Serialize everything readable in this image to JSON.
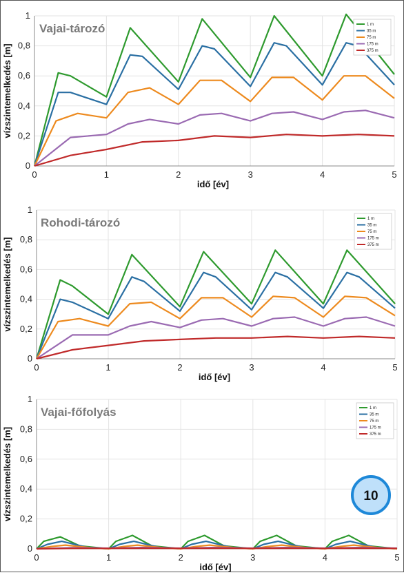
{
  "chart_data": [
    {
      "type": "line",
      "title": "Vajai-tározó",
      "xlabel": "idő [év]",
      "ylabel": "vízszintemelkedés [m]",
      "xlim": [
        0,
        5
      ],
      "ylim": [
        0,
        1
      ],
      "xticks": [
        "0",
        "1",
        "2",
        "3",
        "4",
        "5"
      ],
      "yticks": [
        "0",
        "0,2",
        "0,4",
        "0,6",
        "0,8",
        "1"
      ],
      "grid": true,
      "legend": "top-right",
      "series": [
        {
          "name": "1 m",
          "color": "#2e9a2e",
          "x": [
            0,
            0.33,
            0.5,
            1,
            1.33,
            2,
            2.33,
            3,
            3.33,
            4,
            4.33,
            5
          ],
          "y": [
            0,
            0.62,
            0.6,
            0.46,
            0.92,
            0.56,
            0.98,
            0.59,
            1.0,
            0.6,
            1.01,
            0.61
          ]
        },
        {
          "name": "35 m",
          "color": "#2a6fa3",
          "x": [
            0,
            0.33,
            0.5,
            1,
            1.33,
            1.5,
            2,
            2.33,
            2.5,
            3,
            3.33,
            3.5,
            4,
            4.33,
            4.5,
            5
          ],
          "y": [
            0,
            0.49,
            0.49,
            0.41,
            0.74,
            0.73,
            0.51,
            0.8,
            0.78,
            0.53,
            0.82,
            0.8,
            0.54,
            0.82,
            0.8,
            0.54
          ]
        },
        {
          "name": "75 m",
          "color": "#ed8a1e",
          "x": [
            0,
            0.3,
            0.6,
            1,
            1.3,
            1.6,
            2,
            2.3,
            2.6,
            3,
            3.3,
            3.6,
            4,
            4.3,
            4.6,
            5
          ],
          "y": [
            0,
            0.3,
            0.35,
            0.32,
            0.49,
            0.52,
            0.41,
            0.57,
            0.57,
            0.43,
            0.59,
            0.59,
            0.44,
            0.6,
            0.6,
            0.45
          ]
        },
        {
          "name": "175 m",
          "color": "#9a6ab2",
          "x": [
            0,
            0.5,
            1,
            1.3,
            1.6,
            2,
            2.3,
            2.6,
            3,
            3.3,
            3.6,
            4,
            4.3,
            4.6,
            5
          ],
          "y": [
            0,
            0.19,
            0.21,
            0.28,
            0.31,
            0.28,
            0.34,
            0.35,
            0.3,
            0.35,
            0.36,
            0.31,
            0.36,
            0.37,
            0.32
          ]
        },
        {
          "name": "375 m",
          "color": "#c02a2a",
          "x": [
            0,
            0.5,
            1,
            1.5,
            2,
            2.5,
            3,
            3.5,
            4,
            4.5,
            5
          ],
          "y": [
            0,
            0.07,
            0.11,
            0.16,
            0.17,
            0.2,
            0.19,
            0.21,
            0.2,
            0.21,
            0.2
          ]
        }
      ]
    },
    {
      "type": "line",
      "title": "Rohodi-tározó",
      "xlabel": "idő [év]",
      "ylabel": "vízszintemelkedés [m]",
      "xlim": [
        0,
        5
      ],
      "ylim": [
        0,
        1
      ],
      "xticks": [
        "0",
        "1",
        "2",
        "3",
        "4",
        "5"
      ],
      "yticks": [
        "0",
        "0,2",
        "0,4",
        "0,6",
        "0,8",
        "1"
      ],
      "grid": true,
      "legend": "top-right",
      "series": [
        {
          "name": "1 m",
          "color": "#2e9a2e",
          "x": [
            0,
            0.33,
            0.5,
            1,
            1.33,
            2,
            2.33,
            3,
            3.33,
            4,
            4.33,
            5
          ],
          "y": [
            0,
            0.53,
            0.49,
            0.3,
            0.7,
            0.35,
            0.72,
            0.37,
            0.73,
            0.37,
            0.73,
            0.37
          ]
        },
        {
          "name": "35 m",
          "color": "#2a6fa3",
          "x": [
            0,
            0.33,
            0.5,
            1,
            1.33,
            1.5,
            2,
            2.33,
            2.5,
            3,
            3.33,
            3.5,
            4,
            4.33,
            4.5,
            5
          ],
          "y": [
            0,
            0.4,
            0.38,
            0.27,
            0.55,
            0.52,
            0.32,
            0.58,
            0.55,
            0.33,
            0.58,
            0.55,
            0.34,
            0.58,
            0.55,
            0.34
          ]
        },
        {
          "name": "75 m",
          "color": "#ed8a1e",
          "x": [
            0,
            0.3,
            0.6,
            1,
            1.3,
            1.6,
            2,
            2.3,
            2.6,
            3,
            3.3,
            3.6,
            4,
            4.3,
            4.6,
            5
          ],
          "y": [
            0,
            0.25,
            0.27,
            0.22,
            0.37,
            0.38,
            0.27,
            0.41,
            0.41,
            0.28,
            0.42,
            0.41,
            0.28,
            0.42,
            0.41,
            0.29
          ]
        },
        {
          "name": "175 m",
          "color": "#9a6ab2",
          "x": [
            0,
            0.5,
            1,
            1.3,
            1.6,
            2,
            2.3,
            2.6,
            3,
            3.3,
            3.6,
            4,
            4.3,
            4.6,
            5
          ],
          "y": [
            0,
            0.16,
            0.16,
            0.22,
            0.25,
            0.21,
            0.26,
            0.27,
            0.22,
            0.27,
            0.28,
            0.22,
            0.27,
            0.28,
            0.22
          ]
        },
        {
          "name": "375 m",
          "color": "#c02a2a",
          "x": [
            0,
            0.5,
            1,
            1.5,
            2,
            2.5,
            3,
            3.5,
            4,
            4.5,
            5
          ],
          "y": [
            0,
            0.06,
            0.09,
            0.12,
            0.13,
            0.14,
            0.14,
            0.15,
            0.14,
            0.15,
            0.14
          ]
        }
      ]
    },
    {
      "type": "line",
      "title": "Vajai-főfolyás",
      "xlabel": "idő [év]",
      "ylabel": "vízszintemelkedés [m]",
      "xlim": [
        0,
        5
      ],
      "ylim": [
        0,
        1
      ],
      "xticks": [
        "0",
        "1",
        "2",
        "3",
        "4",
        "5"
      ],
      "yticks": [
        "0",
        "0,2",
        "0,4",
        "0,6",
        "0,8",
        "1"
      ],
      "grid": true,
      "legend": "top-right",
      "series": [
        {
          "name": "1 m",
          "color": "#2e9a2e",
          "x": [
            0,
            0.1,
            0.33,
            0.6,
            1,
            1.1,
            1.33,
            1.6,
            2,
            2.1,
            2.33,
            2.6,
            3,
            3.1,
            3.33,
            3.6,
            4,
            4.1,
            4.33,
            4.6,
            5
          ],
          "y": [
            0,
            0.05,
            0.08,
            0.02,
            0.0,
            0.05,
            0.09,
            0.02,
            0.0,
            0.05,
            0.09,
            0.02,
            0.0,
            0.05,
            0.09,
            0.02,
            0.0,
            0.05,
            0.09,
            0.02,
            0.0
          ]
        },
        {
          "name": "35 m",
          "color": "#2a6fa3",
          "x": [
            0,
            0.15,
            0.35,
            0.7,
            1,
            1.15,
            1.35,
            1.7,
            2,
            2.15,
            2.35,
            2.7,
            3,
            3.15,
            3.35,
            3.7,
            4,
            4.15,
            4.35,
            4.7,
            5
          ],
          "y": [
            0,
            0.03,
            0.05,
            0.01,
            0.0,
            0.03,
            0.05,
            0.01,
            0.0,
            0.03,
            0.05,
            0.01,
            0.0,
            0.03,
            0.05,
            0.01,
            0.0,
            0.03,
            0.05,
            0.01,
            0.0
          ]
        },
        {
          "name": "75 m",
          "color": "#ed8a1e",
          "x": [
            0,
            0.2,
            0.4,
            0.8,
            1,
            1.2,
            1.4,
            1.8,
            2,
            2.2,
            2.4,
            2.8,
            3,
            3.2,
            3.4,
            3.8,
            4,
            4.2,
            4.4,
            4.8,
            5
          ],
          "y": [
            0,
            0.015,
            0.025,
            0.005,
            0.0,
            0.015,
            0.025,
            0.005,
            0.0,
            0.015,
            0.025,
            0.005,
            0.0,
            0.015,
            0.025,
            0.005,
            0.0,
            0.015,
            0.025,
            0.005,
            0.0
          ]
        },
        {
          "name": "175 m",
          "color": "#9a6ab2",
          "x": [
            0,
            0.5,
            1,
            1.5,
            2,
            2.5,
            3,
            3.5,
            4,
            4.5,
            5
          ],
          "y": [
            0,
            0.008,
            0.004,
            0.009,
            0.004,
            0.009,
            0.004,
            0.009,
            0.004,
            0.009,
            0.004
          ]
        },
        {
          "name": "375 m",
          "color": "#c02a2a",
          "x": [
            0,
            0.5,
            1,
            1.5,
            2,
            2.5,
            3,
            3.5,
            4,
            4.5,
            5
          ],
          "y": [
            0,
            0.003,
            0.003,
            0.004,
            0.003,
            0.004,
            0.003,
            0.004,
            0.003,
            0.004,
            0.003
          ]
        }
      ]
    }
  ],
  "badge": {
    "text": "10",
    "fill": "#bfe0fa",
    "stroke": "#1e88d8"
  }
}
